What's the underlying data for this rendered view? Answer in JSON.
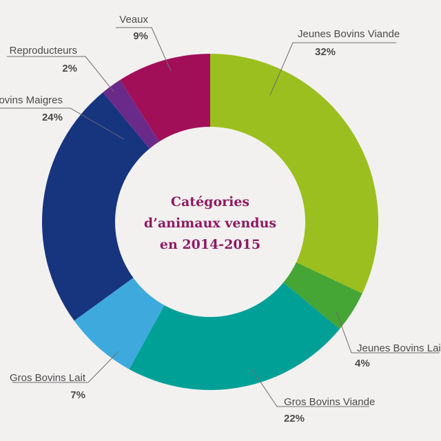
{
  "chart_data": {
    "type": "pie",
    "variant": "donut",
    "title_lines": [
      "Catégories",
      "d’animaux vendus",
      "en 2014-2015"
    ],
    "slices": [
      {
        "label": "Jeunes Bovins Viande",
        "value": 32,
        "value_label": "32%",
        "color": "#9bbf1f"
      },
      {
        "label": "Jeunes Bovins Lait",
        "value": 4,
        "value_label": "4%",
        "color": "#45a535"
      },
      {
        "label": "Gros Bovins Viande",
        "value": 22,
        "value_label": "22%",
        "color": "#00a097"
      },
      {
        "label": "Gros Bovins Lait",
        "value": 7,
        "value_label": "7%",
        "color": "#3ea9dd"
      },
      {
        "label": "Bovins Maigres",
        "value": 24,
        "value_label": "24%",
        "color": "#17347f"
      },
      {
        "label": "Reproducteurs",
        "value": 2,
        "value_label": "2%",
        "color": "#6a2a8a"
      },
      {
        "label": "Veaux",
        "value": 9,
        "value_label": "9%",
        "color": "#a20f59"
      }
    ]
  }
}
